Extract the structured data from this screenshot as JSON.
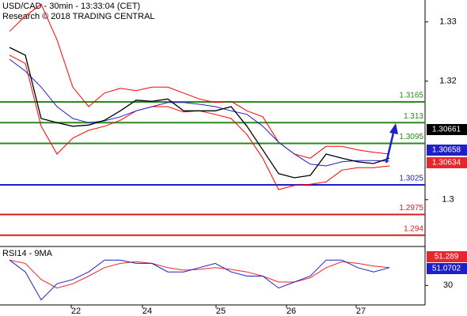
{
  "header": {
    "title": "USD/CAD - 30min - 13:33:04 (CET)",
    "subtitle": "Research © 2018 TRADING CENTRAL"
  },
  "chart_data": [
    {
      "type": "line",
      "ylim": [
        1.2921,
        1.3337
      ],
      "xlim": [
        -0.6,
        26.25
      ],
      "yticks": [
        1.3,
        1.32,
        1.33
      ],
      "series": [
        {
          "color": "#ff0000",
          "values": [
            1.3284,
            1.331,
            1.333,
            1.327,
            1.319,
            1.3157,
            1.318,
            1.3188,
            1.3184,
            1.319,
            1.319,
            1.318,
            1.317,
            1.3164,
            1.3166,
            1.315,
            1.314,
            1.3097,
            1.3077,
            1.307,
            1.309,
            1.309,
            1.3084,
            1.308,
            1.3077
          ]
        },
        {
          "color": "#ff0000",
          "values": [
            1.3244,
            1.323,
            1.3124,
            1.3077,
            1.3104,
            1.3117,
            1.3124,
            1.3134,
            1.315,
            1.3157,
            1.3157,
            1.3148,
            1.315,
            1.3144,
            1.3137,
            1.311,
            1.307,
            1.3017,
            1.3024,
            1.3026,
            1.303,
            1.305,
            1.3054,
            1.3054,
            1.3057
          ]
        },
        {
          "color": "#1f1fc8",
          "values": [
            1.3237,
            1.3217,
            1.319,
            1.3157,
            1.3137,
            1.313,
            1.3133,
            1.314,
            1.315,
            1.3157,
            1.3164,
            1.3164,
            1.3161,
            1.3157,
            1.315,
            1.3144,
            1.3124,
            1.3097,
            1.3077,
            1.306,
            1.3057,
            1.3064,
            1.3066,
            1.3066,
            1.3065
          ]
        },
        {
          "color": "#000000",
          "values": [
            1.3257,
            1.3244,
            1.3137,
            1.313,
            1.3124,
            1.3126,
            1.3134,
            1.315,
            1.3168,
            1.3166,
            1.317,
            1.315,
            1.315,
            1.315,
            1.3157,
            1.3124,
            1.3084,
            1.3044,
            1.3037,
            1.3041,
            1.3077,
            1.307,
            1.3064,
            1.3061,
            1.307
          ]
        }
      ],
      "levels": [
        {
          "value": 1.3165,
          "color": "#2a8a1e"
        },
        {
          "value": 1.313,
          "color": "#2a8a1e"
        },
        {
          "value": 1.3095,
          "color": "#2a8a1e"
        },
        {
          "value": 1.3025,
          "color": "#1f1fc8"
        },
        {
          "value": 1.2975,
          "color": "#d81e1e"
        },
        {
          "value": 1.294,
          "color": "#d81e1e"
        }
      ],
      "price_tags": [
        {
          "value": 1.30661,
          "color": "#000000"
        },
        {
          "value": 1.30658,
          "color": "#1f1fc8"
        },
        {
          "value": 1.30634,
          "color": "#e8262e"
        }
      ]
    },
    {
      "type": "line",
      "title": "RSI14 - 9MA",
      "ylim": [
        7,
        76
      ],
      "xlim": [
        -0.6,
        26.25
      ],
      "yticks": [
        30
      ],
      "xticks": [
        {
          "value": 3.9,
          "label": "22"
        },
        {
          "value": 8.4,
          "label": "24"
        },
        {
          "value": 13.05,
          "label": "25"
        },
        {
          "value": 17.5,
          "label": "26"
        },
        {
          "value": 21.9,
          "label": "27"
        }
      ],
      "series": [
        {
          "color": "#e8262e",
          "values": [
            60,
            56,
            37,
            27,
            32,
            41,
            51,
            56,
            58,
            56,
            51,
            48,
            49,
            51,
            49,
            46,
            41,
            34,
            34,
            39,
            51,
            58,
            56,
            53,
            51
          ]
        },
        {
          "color": "#1f1fc8",
          "values": [
            60,
            46,
            13,
            32,
            37,
            46,
            60,
            60,
            56,
            56,
            46,
            46,
            51,
            56,
            46,
            41,
            41,
            27,
            34,
            41,
            60,
            60,
            51,
            46,
            51
          ]
        }
      ],
      "price_tags": [
        {
          "value": 51.289,
          "color": "#e8262e"
        },
        {
          "value": 51.0702,
          "color": "#1f1fc8"
        }
      ]
    }
  ]
}
